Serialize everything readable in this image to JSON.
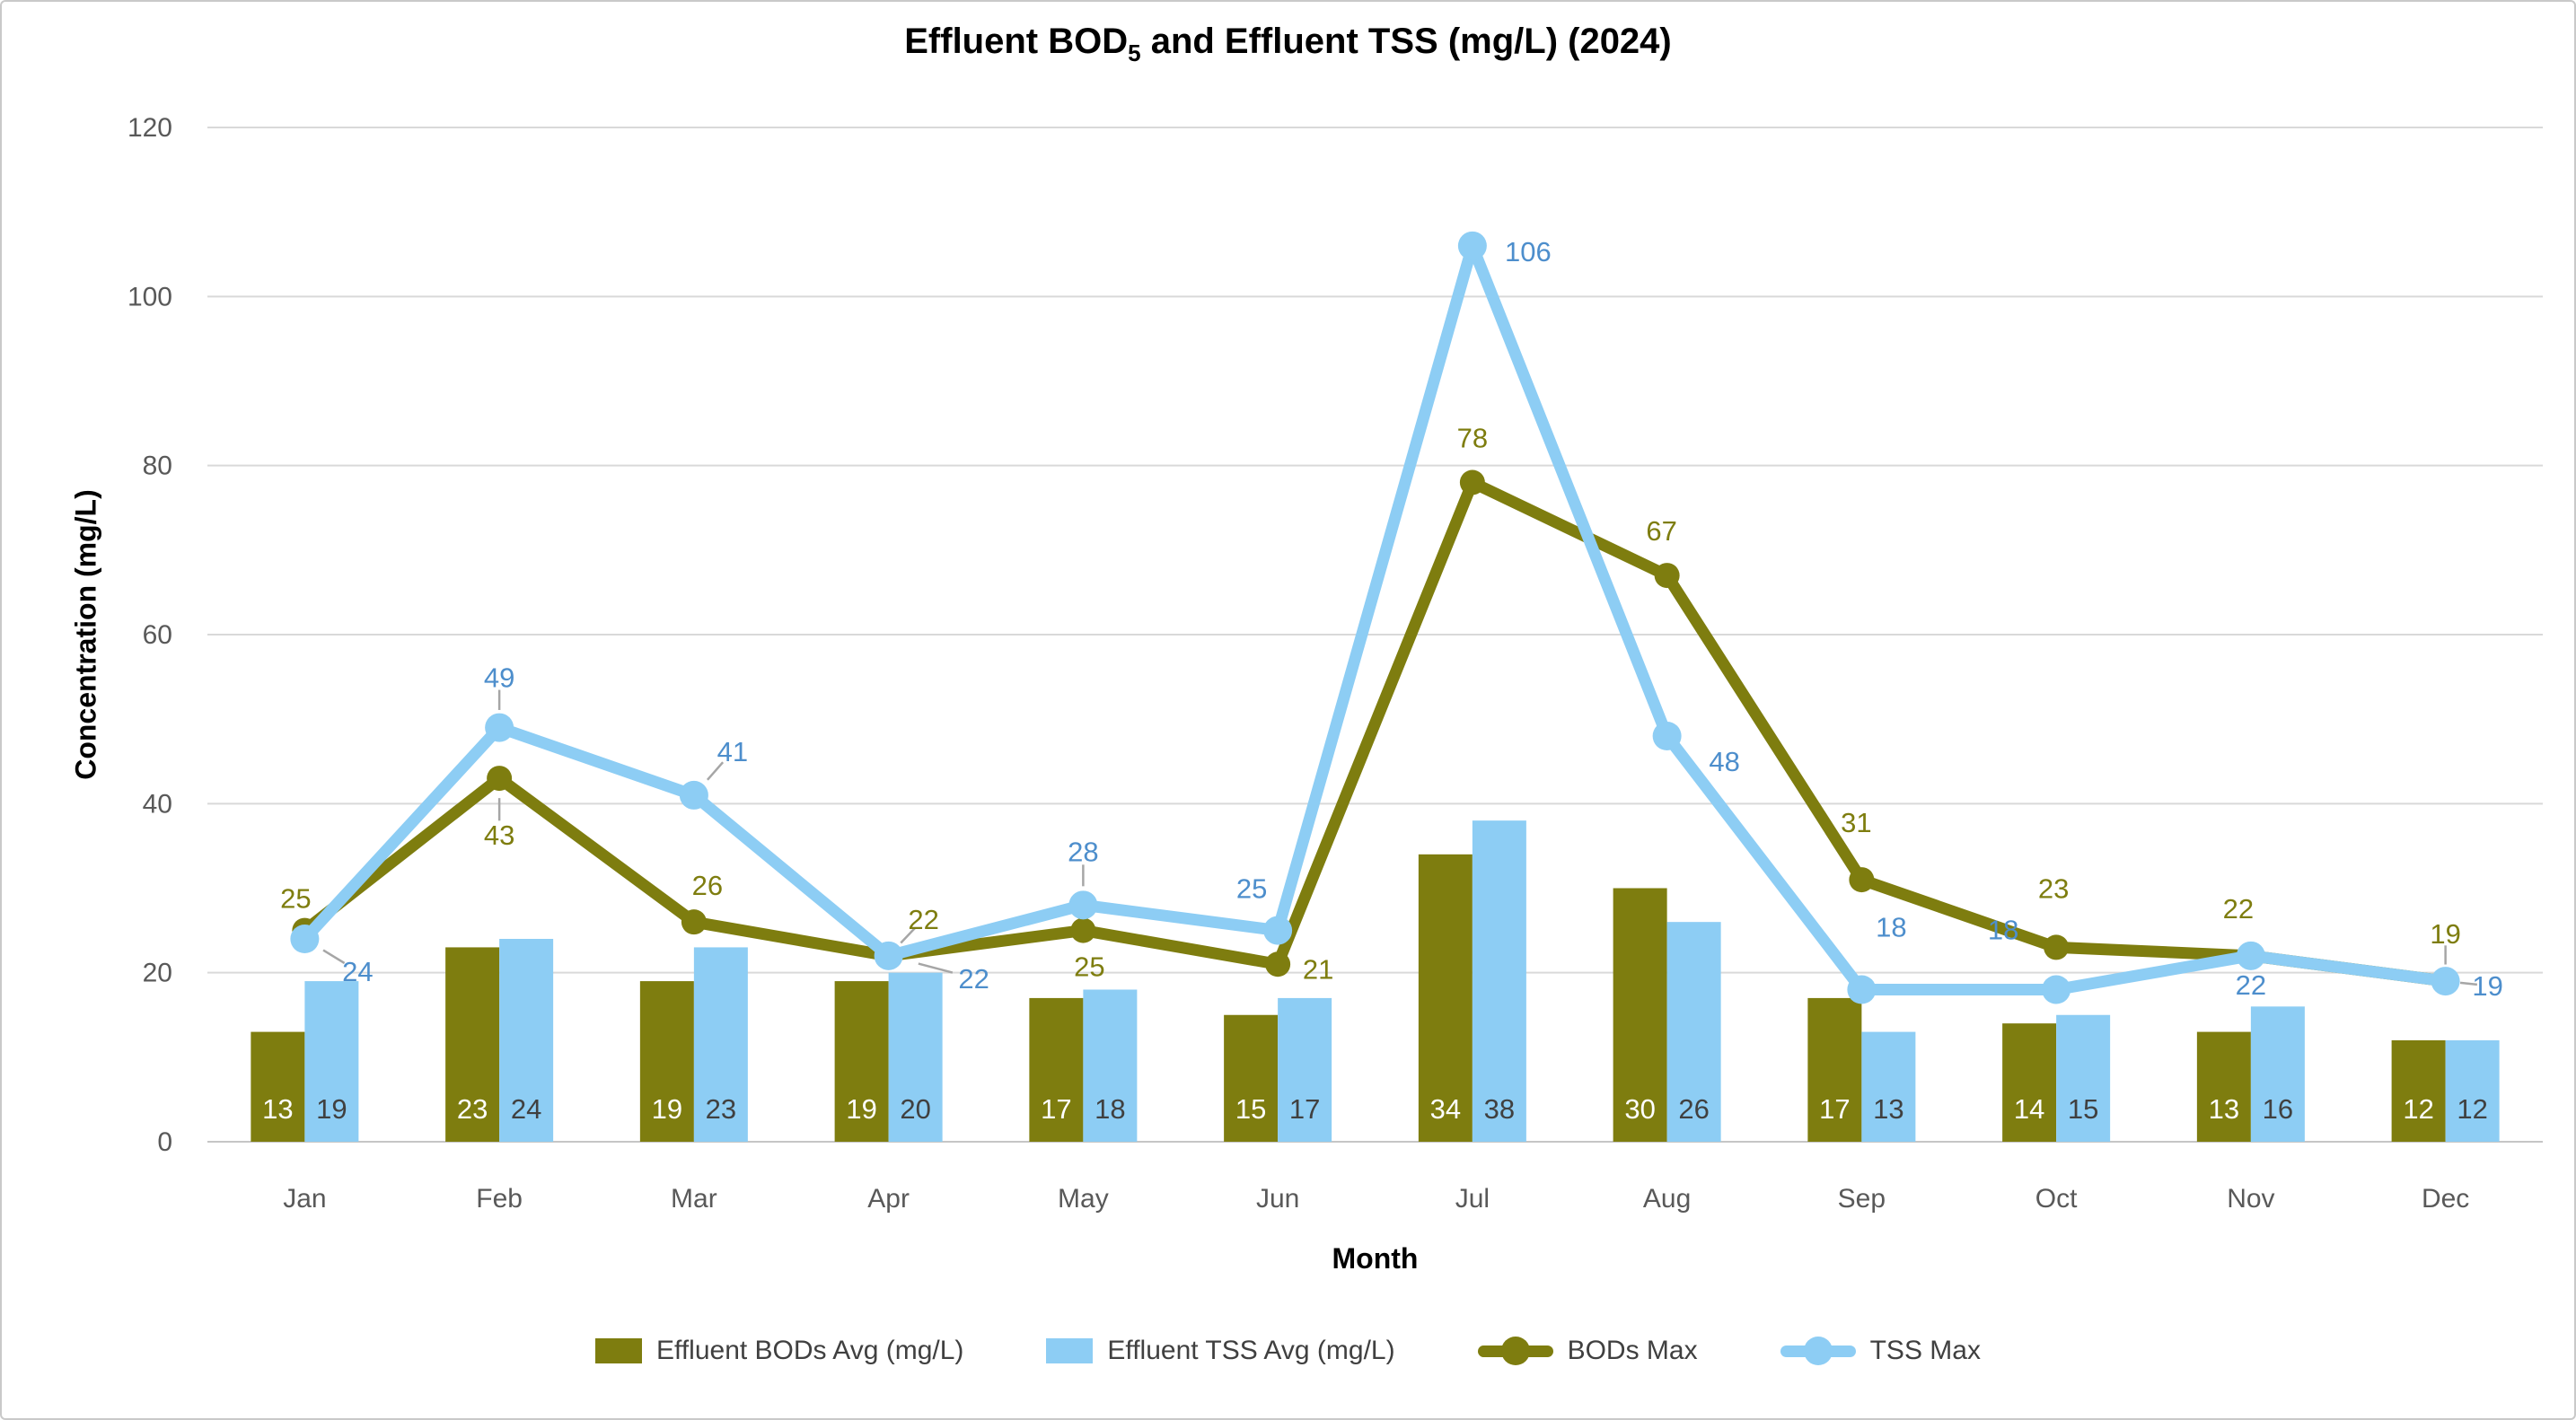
{
  "window": {
    "background": "#FFFFFF",
    "border_color": "#C9C9C9"
  },
  "title": {
    "prefix": "Effluent BOD",
    "subscript": "5",
    "suffix": " and Effluent TSS (mg/L) (2024)"
  },
  "colors": {
    "olive": "#7E7D0F",
    "light_blue": "#8DCDF4",
    "bod_label_text": "#7E7D0F",
    "tss_label_text": "#4D8ECC",
    "grid_line": "#D9D9D9",
    "axis_line": "#C6C6C6",
    "tick_text": "#595959",
    "bar_label_on_olive": "#FFFFFF",
    "bar_label_on_blue": "#404040",
    "leader_line": "#A6A6A6",
    "legend_text": "#404040",
    "title_text": "#000000"
  },
  "chart_data": {
    "type": "combo_bar_line",
    "title": "Effluent BOD5 and Effluent TSS (mg/L) (2024)",
    "categories": [
      "Jan",
      "Feb",
      "Mar",
      "Apr",
      "May",
      "Jun",
      "Jul",
      "Aug",
      "Sep",
      "Oct",
      "Nov",
      "Dec"
    ],
    "xlabel": "Month",
    "ylabel": "Concentration (mg/L)",
    "ylim": [
      0,
      120
    ],
    "ytick_step": 20,
    "yticks": [
      0,
      20,
      40,
      60,
      80,
      100,
      120
    ],
    "grid": true,
    "legend_position": "bottom",
    "series": [
      {
        "name": "Effluent BODs Avg (mg/L)",
        "kind": "bar",
        "color": "#7E7D0F",
        "value_label_color": "#FFFFFF",
        "values": [
          13,
          23,
          19,
          19,
          17,
          15,
          34,
          30,
          17,
          14,
          13,
          12
        ]
      },
      {
        "name": "Effluent TSS Avg (mg/L)",
        "kind": "bar",
        "color": "#8DCDF4",
        "value_label_color": "#404040",
        "values": [
          19,
          24,
          23,
          20,
          18,
          17,
          38,
          26,
          13,
          15,
          16,
          12
        ]
      },
      {
        "name": "BODs Max",
        "kind": "line",
        "color": "#7E7D0F",
        "label_color": "#7E7D0F",
        "values": [
          25,
          43,
          26,
          22,
          25,
          21,
          78,
          67,
          31,
          23,
          22,
          19
        ],
        "label_offsets": [
          [
            -10,
            -36
          ],
          [
            0,
            63
          ],
          [
            15,
            -41
          ],
          [
            39,
            -41
          ],
          [
            7,
            40
          ],
          [
            45,
            5
          ],
          [
            0,
            -50
          ],
          [
            -6,
            -50
          ],
          [
            -6,
            -64
          ],
          [
            -3,
            -66
          ],
          [
            -14,
            -53
          ],
          [
            0,
            -53
          ]
        ],
        "leader_indexes": [
          1,
          3,
          11
        ]
      },
      {
        "name": "TSS Max",
        "kind": "line",
        "color": "#8DCDF4",
        "label_color": "#4D8ECC",
        "values": [
          24,
          49,
          41,
          22,
          28,
          25,
          106,
          48,
          18,
          18,
          22,
          19
        ],
        "label_offsets": [
          [
            59,
            36
          ],
          [
            0,
            -56
          ],
          [
            43,
            -49
          ],
          [
            95,
            25
          ],
          [
            0,
            -60
          ],
          [
            -29,
            -47
          ],
          [
            62,
            6
          ],
          [
            64,
            28
          ],
          [
            33,
            -70
          ],
          [
            -59,
            -67
          ],
          [
            0,
            32
          ],
          [
            47,
            5
          ]
        ],
        "leader_indexes": [
          0,
          1,
          2,
          3,
          4,
          11
        ]
      }
    ]
  }
}
